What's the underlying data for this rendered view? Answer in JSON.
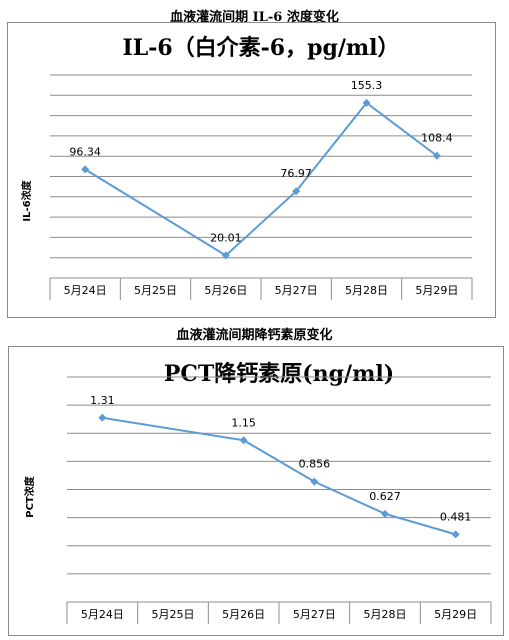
{
  "chart_data": [
    {
      "type": "line",
      "section_title": "血液灌流间期 IL-6 浓度变化",
      "title": "IL-6（白介素-6，pg/ml）",
      "ylabel": "IL-6浓度",
      "xlabel": "",
      "categories": [
        "5月24日",
        "5月25日",
        "5月26日",
        "5月27日",
        "5月28日",
        "5月29日"
      ],
      "series": [
        {
          "values": [
            96.34,
            null,
            20.01,
            76.97,
            155.3,
            108.4
          ],
          "labels": [
            "96.34",
            null,
            "20.01",
            "76.97",
            "155.3",
            "108.4"
          ]
        }
      ],
      "ylim": [
        0,
        180
      ],
      "yticks": 10,
      "grid": true,
      "legend": "none",
      "line_color": "#5b9bd5"
    },
    {
      "type": "line",
      "section_title": "血液灌流间期降钙素原变化",
      "title": "PCT降钙素原(ng/ml)",
      "ylabel": "PCT浓度",
      "xlabel": "",
      "categories": [
        "5月24日",
        "5月25日",
        "5月26日",
        "5月27日",
        "5月28日",
        "5月29日"
      ],
      "series": [
        {
          "values": [
            1.31,
            null,
            1.15,
            0.856,
            0.627,
            0.481
          ],
          "labels": [
            "1.31",
            null,
            "1.15",
            "0.856",
            "0.627",
            "0.481"
          ]
        }
      ],
      "ylim": [
        0,
        1.6
      ],
      "yticks": 8,
      "grid": true,
      "legend": "none",
      "line_color": "#5b9bd5"
    }
  ]
}
